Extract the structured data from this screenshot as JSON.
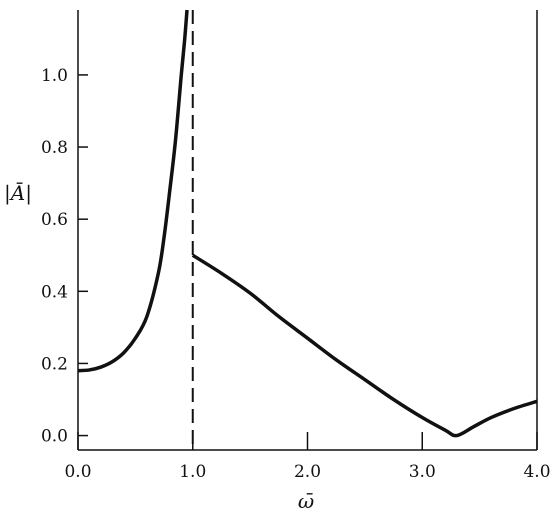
{
  "chart_data": {
    "type": "line",
    "title": "",
    "xlabel": "ω̄",
    "ylabel": "|Ā|",
    "xlim": [
      0.0,
      4.0
    ],
    "ylim": [
      -0.04,
      1.18
    ],
    "x_ticks": [
      0.0,
      1.0,
      2.0,
      3.0,
      4.0
    ],
    "x_tick_labels": [
      "0.0",
      "1.0",
      "2.0",
      "3.0",
      "4.0"
    ],
    "y_ticks": [
      0.0,
      0.2,
      0.4,
      0.6,
      0.8,
      1.0
    ],
    "y_tick_labels": [
      "0.0",
      "0.2",
      "0.4",
      "0.6",
      "0.8",
      "1.0"
    ],
    "grid": false,
    "legend": "none",
    "colors": {
      "line": "#111111"
    },
    "resonance_line": {
      "x": 1.0,
      "style": "dashed"
    },
    "series": [
      {
        "x": [
          0.0,
          0.1,
          0.2,
          0.3,
          0.4,
          0.5,
          0.6,
          0.7,
          0.75,
          0.8,
          0.85,
          0.9,
          0.93,
          0.95
        ],
        "y": [
          0.18,
          0.182,
          0.19,
          0.205,
          0.23,
          0.27,
          0.33,
          0.45,
          0.55,
          0.68,
          0.82,
          1.0,
          1.1,
          1.18
        ]
      },
      {
        "x": [
          1.0,
          1.25,
          1.5,
          1.75,
          2.0,
          2.25,
          2.5,
          2.75,
          3.0,
          3.2,
          3.3,
          3.45,
          3.6,
          3.8,
          4.0
        ],
        "y": [
          0.5,
          0.45,
          0.395,
          0.33,
          0.27,
          0.21,
          0.155,
          0.1,
          0.05,
          0.015,
          0.0,
          0.025,
          0.05,
          0.075,
          0.095
        ]
      }
    ]
  }
}
